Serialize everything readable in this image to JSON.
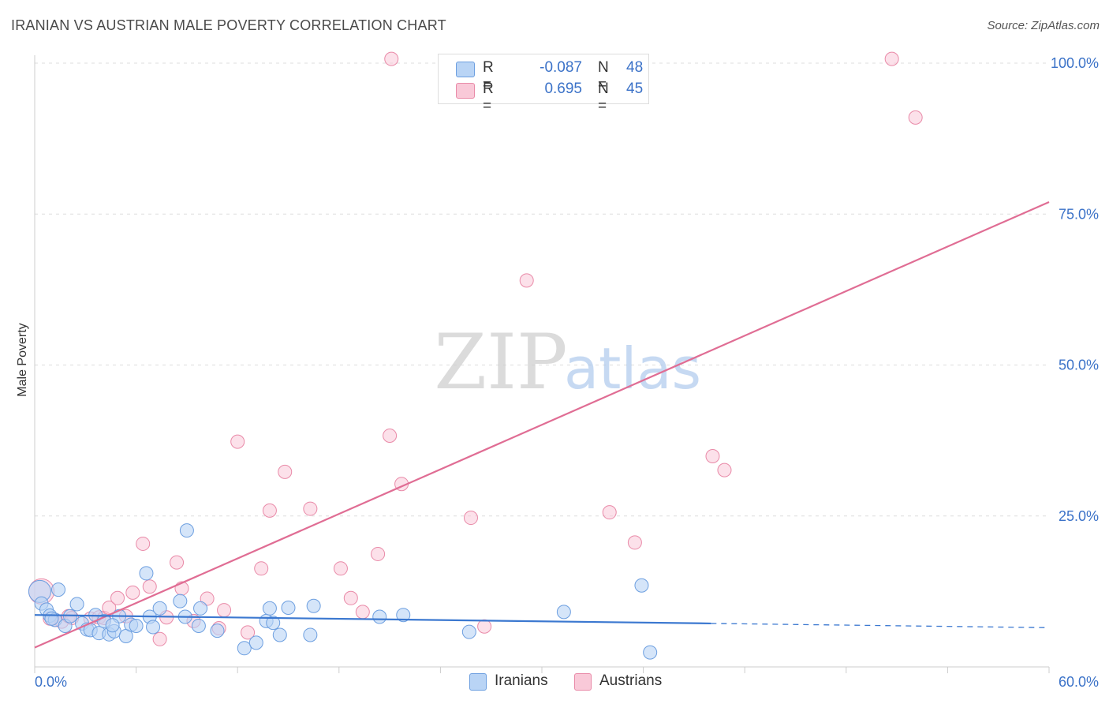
{
  "title": "IRANIAN VS AUSTRIAN MALE POVERTY CORRELATION CHART",
  "source": "Source: ZipAtlas.com",
  "watermark": {
    "zip": "ZIP",
    "atlas": "atlas"
  },
  "legend": {
    "iranians": {
      "r_label": "R =",
      "r_value": "-0.087",
      "n_label": "N =",
      "n_value": "48"
    },
    "austrians": {
      "r_label": "R =",
      "r_value": "0.695",
      "n_label": "N =",
      "n_value": "45"
    }
  },
  "colors": {
    "iranians_fill": "#b9d4f5",
    "iranians_stroke": "#6d9fe0",
    "iranians_line": "#3b78d0",
    "austrians_fill": "#f9c9d8",
    "austrians_stroke": "#e98aa8",
    "austrians_line": "#e06d94",
    "axis_text": "#3b72c8",
    "grid": "#dddddd"
  },
  "chart_data": {
    "type": "scatter",
    "title": "IRANIAN VS AUSTRIAN MALE POVERTY CORRELATION CHART",
    "xlabel": "",
    "ylabel": "Male Poverty",
    "xlim": [
      0,
      60
    ],
    "ylim": [
      0,
      105
    ],
    "x_tick_labels": [
      "0.0%",
      "60.0%"
    ],
    "y_ticks": [
      25,
      50,
      75,
      100
    ],
    "y_tick_labels": [
      "25.0%",
      "50.0%",
      "75.0%",
      "100.0%"
    ],
    "grid": true,
    "legend_position": "top-center",
    "series": [
      {
        "name": "Iranians",
        "r": -0.087,
        "n": 48,
        "trend": {
          "x0": 0,
          "y0": 8.6,
          "x1": 40,
          "y1": 7.2,
          "dash_to_x": 60,
          "dash_to_y": 6.5
        },
        "points": [
          [
            0.3,
            12.5
          ],
          [
            0.4,
            10.5
          ],
          [
            0.7,
            9.5
          ],
          [
            0.9,
            8.5
          ],
          [
            1.2,
            7.8
          ],
          [
            1.4,
            12.8
          ],
          [
            1.8,
            6.8
          ],
          [
            2.1,
            8.4
          ],
          [
            2.5,
            10.4
          ],
          [
            2.8,
            7.2
          ],
          [
            3.1,
            6.2
          ],
          [
            3.3,
            6.1
          ],
          [
            3.6,
            8.6
          ],
          [
            3.8,
            5.6
          ],
          [
            4.1,
            7.6
          ],
          [
            4.4,
            5.4
          ],
          [
            4.7,
            5.9
          ],
          [
            5.0,
            8.4
          ],
          [
            5.4,
            5.1
          ],
          [
            5.7,
            7.0
          ],
          [
            6.0,
            6.8
          ],
          [
            6.6,
            15.5
          ],
          [
            6.8,
            8.3
          ],
          [
            7.0,
            6.6
          ],
          [
            7.4,
            9.7
          ],
          [
            8.6,
            10.9
          ],
          [
            8.9,
            8.3
          ],
          [
            9.0,
            22.6
          ],
          [
            9.7,
            6.8
          ],
          [
            9.8,
            9.7
          ],
          [
            10.8,
            6.0
          ],
          [
            12.4,
            3.1
          ],
          [
            13.1,
            4.0
          ],
          [
            13.7,
            7.6
          ],
          [
            13.9,
            9.7
          ],
          [
            14.1,
            7.3
          ],
          [
            14.5,
            5.3
          ],
          [
            15.0,
            9.8
          ],
          [
            16.3,
            5.3
          ],
          [
            16.5,
            10.1
          ],
          [
            20.4,
            8.3
          ],
          [
            21.8,
            8.6
          ],
          [
            25.7,
            5.8
          ],
          [
            31.3,
            9.1
          ],
          [
            35.9,
            13.5
          ],
          [
            36.4,
            2.4
          ],
          [
            1.0,
            8.0
          ],
          [
            4.6,
            6.9
          ]
        ]
      },
      {
        "name": "Austrians",
        "r": 0.695,
        "n": 45,
        "trend": {
          "x0": 0,
          "y0": 3.2,
          "x1": 60,
          "y1": 77.0
        },
        "points": [
          [
            0.4,
            12.5
          ],
          [
            0.9,
            8.0
          ],
          [
            1.2,
            7.8
          ],
          [
            1.6,
            7.5
          ],
          [
            2.0,
            8.4
          ],
          [
            2.2,
            8.1
          ],
          [
            3.3,
            8.0
          ],
          [
            3.8,
            8.2
          ],
          [
            4.1,
            8.1
          ],
          [
            4.4,
            9.8
          ],
          [
            4.9,
            11.4
          ],
          [
            5.4,
            8.4
          ],
          [
            5.8,
            12.3
          ],
          [
            6.4,
            20.4
          ],
          [
            6.8,
            13.3
          ],
          [
            7.4,
            4.6
          ],
          [
            7.8,
            8.2
          ],
          [
            8.4,
            17.3
          ],
          [
            8.7,
            13.0
          ],
          [
            9.4,
            7.6
          ],
          [
            10.2,
            11.3
          ],
          [
            10.9,
            6.4
          ],
          [
            11.2,
            9.4
          ],
          [
            12.0,
            37.3
          ],
          [
            12.6,
            5.7
          ],
          [
            13.4,
            16.3
          ],
          [
            13.9,
            25.9
          ],
          [
            14.8,
            32.3
          ],
          [
            16.3,
            26.2
          ],
          [
            18.1,
            16.3
          ],
          [
            18.7,
            11.4
          ],
          [
            19.4,
            9.1
          ],
          [
            20.3,
            18.7
          ],
          [
            21.0,
            38.3
          ],
          [
            21.7,
            30.3
          ],
          [
            21.1,
            100.7
          ],
          [
            25.8,
            24.7
          ],
          [
            26.6,
            6.7
          ],
          [
            29.1,
            64.0
          ],
          [
            34.0,
            25.6
          ],
          [
            35.5,
            20.6
          ],
          [
            40.1,
            34.9
          ],
          [
            40.8,
            32.6
          ],
          [
            50.7,
            100.7
          ],
          [
            52.1,
            91.0
          ]
        ]
      }
    ]
  }
}
